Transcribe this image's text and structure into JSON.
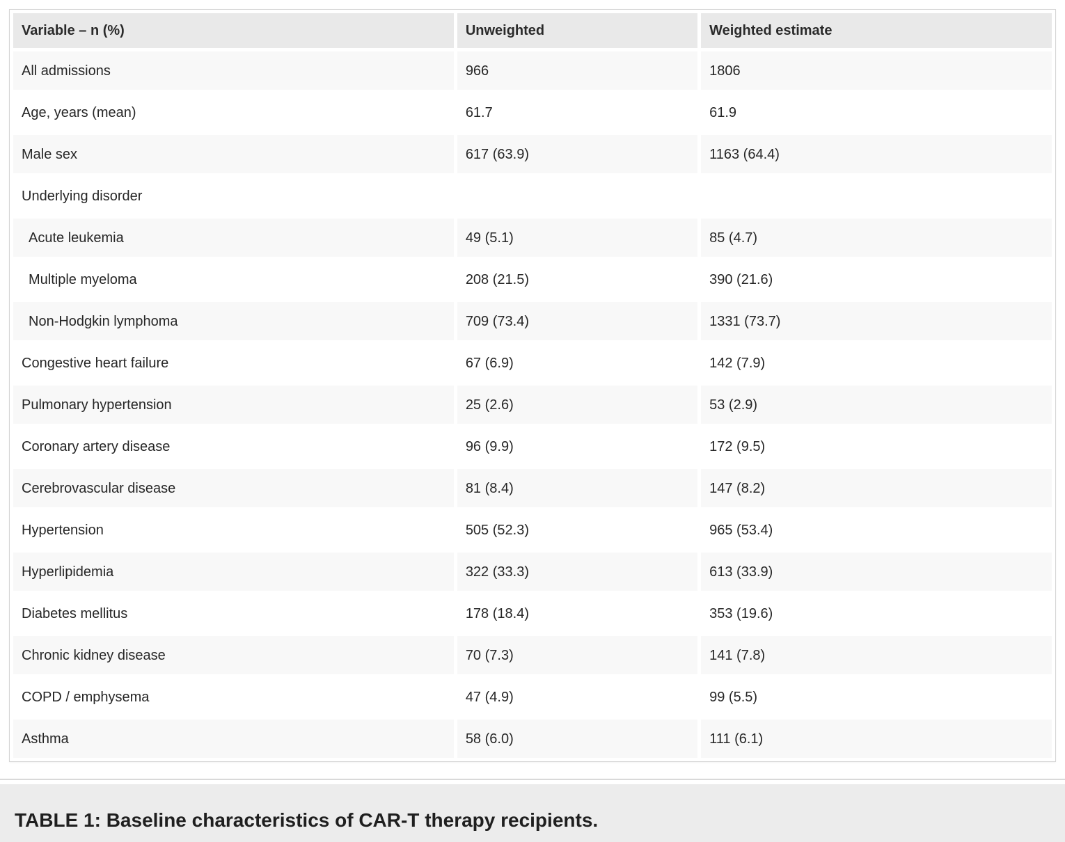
{
  "table": {
    "columns": [
      {
        "label": "Variable – n (%)"
      },
      {
        "label": "Unweighted"
      },
      {
        "label": "Weighted estimate"
      }
    ],
    "rows": [
      {
        "label": "All admissions",
        "unweighted": "966",
        "weighted": "1806",
        "indent": false
      },
      {
        "label": "Age, years (mean)",
        "unweighted": "61.7",
        "weighted": "61.9",
        "indent": false
      },
      {
        "label": "Male sex",
        "unweighted": "617 (63.9)",
        "weighted": "1163 (64.4)",
        "indent": false
      },
      {
        "label": "Underlying disorder",
        "unweighted": "",
        "weighted": "",
        "indent": false
      },
      {
        "label": "Acute leukemia",
        "unweighted": "49 (5.1)",
        "weighted": "85 (4.7)",
        "indent": true
      },
      {
        "label": "Multiple myeloma",
        "unweighted": "208 (21.5)",
        "weighted": "390 (21.6)",
        "indent": true
      },
      {
        "label": "Non-Hodgkin lymphoma",
        "unweighted": "709 (73.4)",
        "weighted": "1331 (73.7)",
        "indent": true
      },
      {
        "label": "Congestive heart failure",
        "unweighted": "67 (6.9)",
        "weighted": "142 (7.9)",
        "indent": false
      },
      {
        "label": "Pulmonary hypertension",
        "unweighted": "25 (2.6)",
        "weighted": "53 (2.9)",
        "indent": false
      },
      {
        "label": "Coronary artery disease",
        "unweighted": "96 (9.9)",
        "weighted": "172 (9.5)",
        "indent": false
      },
      {
        "label": "Cerebrovascular disease",
        "unweighted": "81 (8.4)",
        "weighted": "147 (8.2)",
        "indent": false
      },
      {
        "label": "Hypertension",
        "unweighted": "505 (52.3)",
        "weighted": "965 (53.4)",
        "indent": false
      },
      {
        "label": "Hyperlipidemia",
        "unweighted": "322 (33.3)",
        "weighted": "613 (33.9)",
        "indent": false
      },
      {
        "label": "Diabetes mellitus",
        "unweighted": "178 (18.4)",
        "weighted": "353 (19.6)",
        "indent": false
      },
      {
        "label": "Chronic kidney disease",
        "unweighted": "70 (7.3)",
        "weighted": "141 (7.8)",
        "indent": false
      },
      {
        "label": "COPD / emphysema",
        "unweighted": "47 (4.9)",
        "weighted": "99 (5.5)",
        "indent": false
      },
      {
        "label": "Asthma",
        "unweighted": "58 (6.0)",
        "weighted": "111 (6.1)",
        "indent": false
      }
    ]
  },
  "caption": {
    "text": "TABLE 1: Baseline characteristics of CAR-T therapy recipients."
  },
  "colors": {
    "header_bg": "#e9e9e9",
    "stripe_bg": "#f8f8f8",
    "caption_bg": "#ececec",
    "card_border": "#d5d5d5",
    "divider": "#d9d9d9",
    "text": "#262626"
  }
}
